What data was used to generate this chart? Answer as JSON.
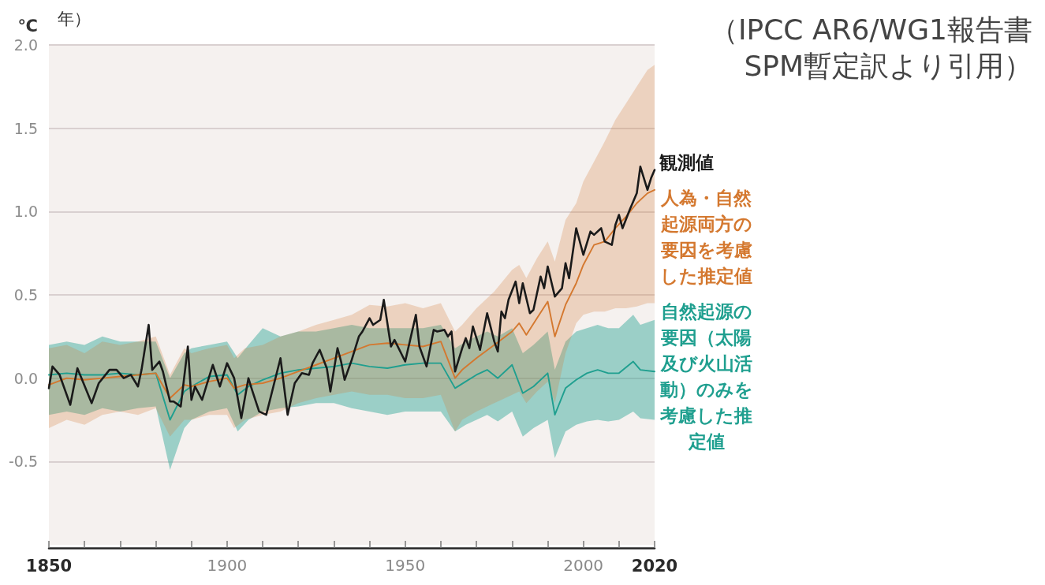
{
  "chart_data": {
    "type": "line",
    "title": "年）",
    "ylabel": "℃",
    "annotations": [
      "（IPCC AR6/WG1報告書\nSPM暫定訳より引用）"
    ],
    "xlim": [
      1850,
      2020
    ],
    "xticks": [
      1850,
      {
        "value": 1860,
        "label": null
      },
      {
        "value": 1870,
        "label": null
      },
      {
        "value": 1880,
        "label": null
      },
      {
        "value": 1890,
        "label": null
      },
      1900,
      {
        "value": 1910,
        "label": null
      },
      {
        "value": 1920,
        "label": null
      },
      {
        "value": 1930,
        "label": null
      },
      {
        "value": 1940,
        "label": null
      },
      1950,
      {
        "value": 1960,
        "label": null
      },
      {
        "value": 1970,
        "label": null
      },
      {
        "value": 1980,
        "label": null
      },
      {
        "value": 1990,
        "label": null
      },
      2000,
      {
        "value": 2010,
        "label": null
      },
      2020
    ],
    "ylim": [
      -1.0,
      2.0
    ],
    "yticks": [
      {
        "value": 2,
        "label": "2.0"
      },
      {
        "value": 1.5,
        "label": "1.5"
      },
      {
        "value": 1,
        "label": "1.0"
      },
      {
        "value": 0.5,
        "label": "0.5"
      },
      {
        "value": 0,
        "label": "0.0"
      },
      {
        "value": -0.5,
        "label": "-0.5"
      }
    ],
    "grid": "y",
    "marker": "none",
    "series": [
      {
        "name": "観測値",
        "color": "#1a1a1a",
        "x": [
          1850,
          1851,
          1853,
          1856,
          1858,
          1862,
          1864,
          1867,
          1869,
          1871,
          1873,
          1875,
          1876,
          1878,
          1879,
          1881,
          1882,
          1884,
          1885,
          1887,
          1889,
          1890,
          1891,
          1893,
          1896,
          1898,
          1900,
          1902,
          1904,
          1906,
          1907,
          1909,
          1911,
          1913,
          1915,
          1917,
          1919,
          1921,
          1923,
          1924,
          1926,
          1928,
          1929,
          1931,
          1932,
          1933,
          1935,
          1937,
          1938,
          1940,
          1941,
          1943,
          1944,
          1946,
          1947,
          1950,
          1953,
          1954,
          1956,
          1958,
          1959,
          1961,
          1962,
          1963,
          1964,
          1965,
          1966,
          1967,
          1968,
          1969,
          1971,
          1972,
          1973,
          1975,
          1976,
          1977,
          1978,
          1979,
          1981,
          1982,
          1983,
          1985,
          1986,
          1988,
          1989,
          1990,
          1992,
          1994,
          1995,
          1996,
          1998,
          2000,
          2002,
          2003,
          2005,
          2006,
          2008,
          2009,
          2010,
          2011,
          2013,
          2015,
          2016,
          2018,
          2019,
          2020
        ],
        "values": [
          -0.06,
          0.07,
          0.02,
          -0.16,
          0.06,
          -0.15,
          -0.03,
          0.05,
          0.05,
          0.0,
          0.02,
          -0.05,
          0.05,
          0.32,
          0.05,
          0.1,
          0.04,
          -0.14,
          -0.14,
          -0.17,
          0.19,
          -0.13,
          -0.05,
          -0.13,
          0.08,
          -0.05,
          0.09,
          0.0,
          -0.24,
          0.0,
          -0.07,
          -0.2,
          -0.22,
          -0.05,
          0.12,
          -0.22,
          -0.03,
          0.03,
          0.02,
          0.09,
          0.17,
          0.06,
          -0.08,
          0.18,
          0.1,
          -0.01,
          0.11,
          0.25,
          0.28,
          0.36,
          0.32,
          0.35,
          0.47,
          0.19,
          0.23,
          0.1,
          0.38,
          0.19,
          0.07,
          0.29,
          0.28,
          0.29,
          0.25,
          0.28,
          0.04,
          0.11,
          0.18,
          0.24,
          0.18,
          0.31,
          0.17,
          0.28,
          0.39,
          0.22,
          0.16,
          0.4,
          0.36,
          0.47,
          0.58,
          0.45,
          0.57,
          0.39,
          0.41,
          0.61,
          0.54,
          0.67,
          0.49,
          0.54,
          0.69,
          0.6,
          0.9,
          0.74,
          0.88,
          0.86,
          0.9,
          0.82,
          0.8,
          0.92,
          0.98,
          0.9,
          1.01,
          1.11,
          1.27,
          1.13,
          1.2,
          1.25
        ]
      },
      {
        "name": "人為・自然起源両方の要因を考慮した推定値",
        "color": "#d4782f",
        "x": [
          1850,
          1855,
          1860,
          1865,
          1870,
          1875,
          1880,
          1884,
          1888,
          1890,
          1895,
          1900,
          1902,
          1905,
          1910,
          1915,
          1920,
          1925,
          1930,
          1935,
          1940,
          1945,
          1950,
          1955,
          1960,
          1964,
          1966,
          1970,
          1975,
          1980,
          1982,
          1984,
          1987,
          1990,
          1992,
          1995,
          1998,
          2000,
          2003,
          2006,
          2009,
          2012,
          2015,
          2018,
          2020
        ],
        "values": [
          -0.04,
          0.0,
          -0.01,
          0.0,
          0.01,
          0.02,
          0.03,
          -0.12,
          -0.04,
          -0.05,
          -0.02,
          0.0,
          -0.06,
          -0.04,
          -0.03,
          0.0,
          0.04,
          0.08,
          0.12,
          0.16,
          0.2,
          0.21,
          0.2,
          0.19,
          0.22,
          0.0,
          0.05,
          0.12,
          0.2,
          0.28,
          0.33,
          0.26,
          0.36,
          0.46,
          0.25,
          0.44,
          0.57,
          0.68,
          0.8,
          0.82,
          0.9,
          0.97,
          1.05,
          1.11,
          1.13
        ],
        "lower": [
          -0.3,
          -0.25,
          -0.28,
          -0.22,
          -0.2,
          -0.22,
          -0.18,
          -0.35,
          -0.25,
          -0.25,
          -0.22,
          -0.22,
          -0.3,
          -0.25,
          -0.22,
          -0.2,
          -0.15,
          -0.12,
          -0.1,
          -0.08,
          -0.1,
          -0.1,
          -0.12,
          -0.12,
          -0.1,
          -0.32,
          -0.25,
          -0.2,
          -0.15,
          -0.1,
          -0.08,
          -0.15,
          -0.08,
          -0.02,
          -0.15,
          0.15,
          0.33,
          0.38,
          0.4,
          0.4,
          0.42,
          0.42,
          0.43,
          0.45,
          0.45
        ],
        "upper": [
          0.18,
          0.2,
          0.15,
          0.22,
          0.2,
          0.22,
          0.25,
          0.02,
          0.18,
          0.15,
          0.18,
          0.2,
          0.12,
          0.18,
          0.2,
          0.25,
          0.28,
          0.32,
          0.35,
          0.38,
          0.44,
          0.43,
          0.45,
          0.42,
          0.45,
          0.28,
          0.32,
          0.42,
          0.52,
          0.65,
          0.68,
          0.6,
          0.72,
          0.82,
          0.7,
          0.95,
          1.05,
          1.18,
          1.3,
          1.42,
          1.55,
          1.65,
          1.75,
          1.85,
          1.88
        ]
      },
      {
        "name": "自然起源の要因（太陽及び火山活動）のみを考慮した推定値",
        "color": "#1f9f8f",
        "x": [
          1850,
          1855,
          1860,
          1865,
          1870,
          1875,
          1880,
          1884,
          1888,
          1890,
          1895,
          1900,
          1903,
          1906,
          1910,
          1915,
          1920,
          1925,
          1930,
          1935,
          1940,
          1945,
          1950,
          1955,
          1960,
          1964,
          1967,
          1970,
          1973,
          1976,
          1980,
          1983,
          1986,
          1990,
          1992,
          1995,
          1998,
          2001,
          2004,
          2007,
          2010,
          2014,
          2016,
          2020
        ],
        "values": [
          0.02,
          0.03,
          0.02,
          0.02,
          0.03,
          0.02,
          0.03,
          -0.25,
          -0.08,
          -0.05,
          0.01,
          0.02,
          -0.1,
          -0.05,
          -0.01,
          0.03,
          0.05,
          0.06,
          0.07,
          0.09,
          0.07,
          0.06,
          0.08,
          0.09,
          0.09,
          -0.06,
          -0.02,
          0.02,
          0.05,
          0.0,
          0.08,
          -0.09,
          -0.05,
          0.03,
          -0.22,
          -0.06,
          -0.01,
          0.03,
          0.05,
          0.03,
          0.03,
          0.1,
          0.05,
          0.04
        ],
        "lower": [
          -0.22,
          -0.2,
          -0.22,
          -0.18,
          -0.2,
          -0.18,
          -0.17,
          -0.55,
          -0.3,
          -0.25,
          -0.2,
          -0.18,
          -0.32,
          -0.25,
          -0.2,
          -0.18,
          -0.17,
          -0.15,
          -0.15,
          -0.18,
          -0.2,
          -0.22,
          -0.2,
          -0.2,
          -0.2,
          -0.32,
          -0.28,
          -0.25,
          -0.22,
          -0.26,
          -0.2,
          -0.35,
          -0.3,
          -0.25,
          -0.48,
          -0.32,
          -0.28,
          -0.26,
          -0.25,
          -0.26,
          -0.25,
          -0.2,
          -0.24,
          -0.25
        ],
        "upper": [
          0.2,
          0.22,
          0.2,
          0.25,
          0.22,
          0.22,
          0.22,
          0.0,
          0.15,
          0.18,
          0.2,
          0.22,
          0.12,
          0.2,
          0.3,
          0.25,
          0.28,
          0.28,
          0.3,
          0.32,
          0.3,
          0.3,
          0.3,
          0.3,
          0.32,
          0.18,
          0.22,
          0.25,
          0.28,
          0.25,
          0.3,
          0.15,
          0.2,
          0.28,
          0.05,
          0.22,
          0.28,
          0.3,
          0.32,
          0.3,
          0.3,
          0.38,
          0.32,
          0.35
        ]
      }
    ]
  }
}
